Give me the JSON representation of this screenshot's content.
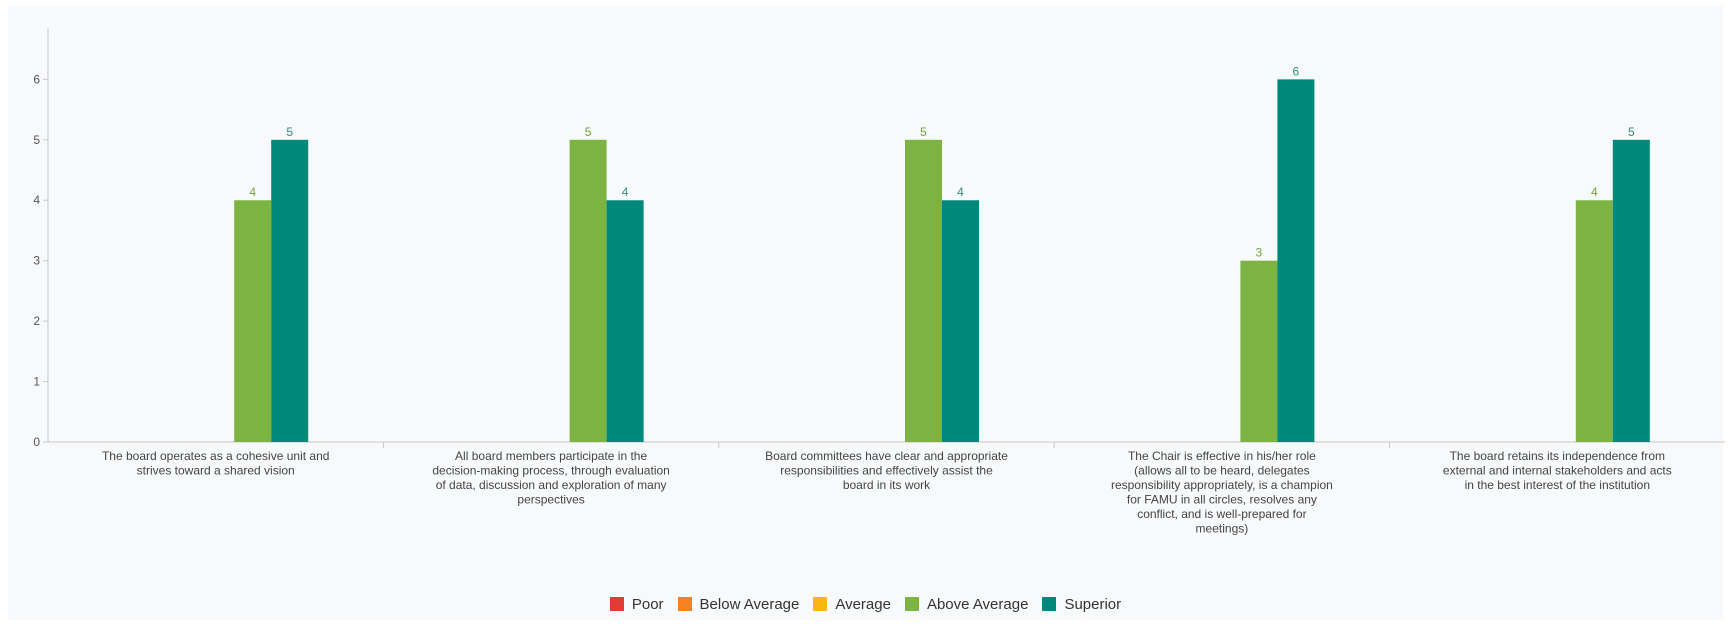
{
  "chart_data": {
    "type": "bar",
    "categories": [
      [
        "The board operates as a cohesive unit and",
        "strives toward a shared vision"
      ],
      [
        "All board members participate in the",
        "decision-making process, through evaluation",
        "of data, discussion and exploration of many",
        "perspectives"
      ],
      [
        "Board committees have clear and appropriate",
        "responsibilities and effectively assist the",
        "board in its work"
      ],
      [
        "The Chair is effective in his/her role",
        "(allows all to be heard, delegates",
        "responsibility appropriately, is a champion",
        "for FAMU in all circles, resolves any",
        "conflict, and is well-prepared for",
        "meetings)"
      ],
      [
        "The board retains its independence from",
        "external and internal stakeholders and acts",
        "in the best interest of the institution"
      ]
    ],
    "series": [
      {
        "name": "Poor",
        "color": "#e03c31",
        "values": [
          0,
          0,
          0,
          0,
          0
        ]
      },
      {
        "name": "Below Average",
        "color": "#f58220",
        "values": [
          0,
          0,
          0,
          0,
          0
        ]
      },
      {
        "name": "Average",
        "color": "#fbb515",
        "values": [
          0,
          0,
          0,
          0,
          0
        ]
      },
      {
        "name": "Above Average",
        "color": "#7cb342",
        "label_color": "#6fa33a",
        "values": [
          4,
          5,
          5,
          3,
          4
        ]
      },
      {
        "name": "Superior",
        "color": "#00897b",
        "label_color": "#2e8b84",
        "values": [
          5,
          4,
          4,
          6,
          5
        ]
      }
    ],
    "yticks": [
      "0",
      "1",
      "2",
      "3",
      "4",
      "5",
      "6"
    ],
    "ylim": [
      0,
      6.85
    ],
    "grid": false,
    "legend": "bottom"
  }
}
